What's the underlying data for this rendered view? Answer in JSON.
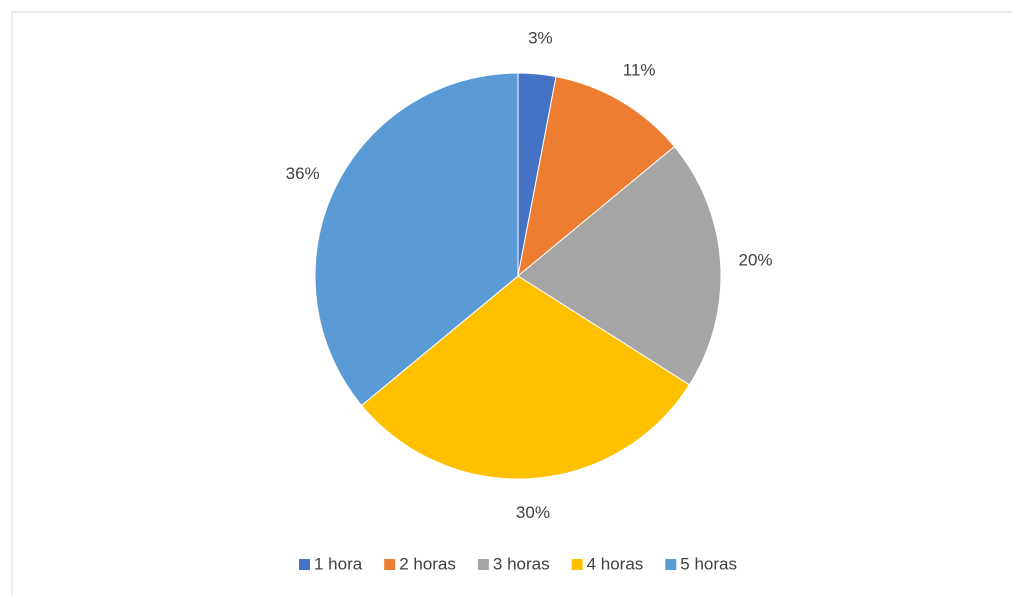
{
  "chart_data": {
    "type": "pie",
    "categories": [
      "1 hora",
      "2 horas",
      "3 horas",
      "4 horas",
      "5 horas"
    ],
    "values": [
      3,
      11,
      20,
      30,
      36
    ],
    "value_labels": [
      "3%",
      "11%",
      "20%",
      "30%",
      "36%"
    ],
    "colors": [
      "#4472c4",
      "#ed7d31",
      "#a5a5a5",
      "#ffc000",
      "#5b9bd5"
    ],
    "legend": "bottom"
  }
}
